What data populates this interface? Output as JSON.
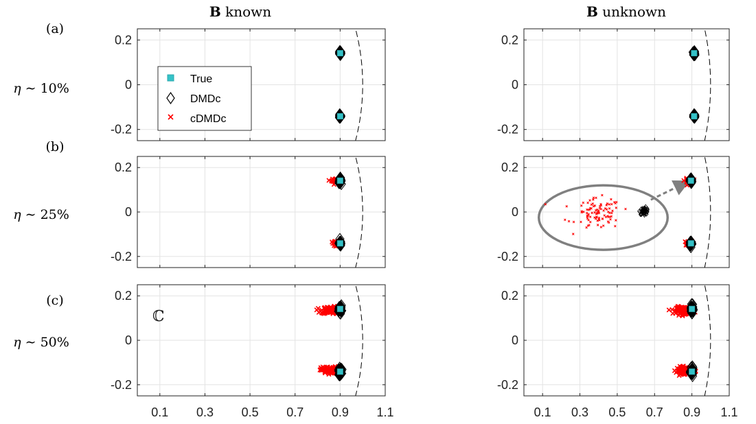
{
  "column_titles": [
    {
      "bold": "B",
      "rest": " known"
    },
    {
      "bold": "B",
      "rest": " unknown"
    }
  ],
  "panel_labels": [
    "(a)",
    "(b)",
    "(c)"
  ],
  "row_labels": [
    {
      "eta": "η",
      "rest": " ∼ 10%"
    },
    {
      "eta": "η",
      "rest": " ∼ 25%"
    },
    {
      "eta": "η",
      "rest": " ∼ 50%"
    }
  ],
  "colors": {
    "true": "#35c2c8",
    "dmdc": "#000000",
    "cdmdc": "#ff0000",
    "grid": "#e3e3e3",
    "arrow": "#808080",
    "ellipse": "#808080"
  },
  "legend": {
    "entries": [
      {
        "label": "True",
        "marker": "square"
      },
      {
        "label": "DMDc",
        "marker": "diamond"
      },
      {
        "label": "cDMDc",
        "marker": "x"
      }
    ],
    "placement": "inside panel (a) left, upper-middle"
  },
  "complex_plane_symbol": "ℂ",
  "chart_data": [
    {
      "type": "scatter",
      "panel": "a",
      "column": "B known",
      "xlim": [
        0,
        1.1
      ],
      "ylim": [
        -0.25,
        0.25
      ],
      "xticks": [
        0.1,
        0.3,
        0.5,
        0.7,
        0.9,
        1.1
      ],
      "yticks": [
        {
          "v": 0.2,
          "label": "0.2"
        },
        {
          "v": 0,
          "label": "0"
        },
        {
          "v": -0.2,
          "label": "-0.2"
        }
      ],
      "xtick_labels_shown": false,
      "grid": true,
      "unit_circle": true,
      "true_eigs": [
        [
          0.9,
          0.141
        ],
        [
          0.9,
          -0.141
        ]
      ],
      "dmdc": {
        "center_spread": 0.004,
        "count": 40
      },
      "cdmdc": {
        "clusters": [
          {
            "x": 0.9,
            "y": 0.141,
            "sx": 0.003,
            "sy": 0.003,
            "n": 20
          },
          {
            "x": 0.9,
            "y": -0.141,
            "sx": 0.003,
            "sy": 0.003,
            "n": 20
          }
        ]
      },
      "legend": true
    },
    {
      "type": "scatter",
      "panel": "a",
      "column": "B unknown",
      "xlim": [
        0,
        1.1
      ],
      "ylim": [
        -0.25,
        0.25
      ],
      "xticks": [
        0.1,
        0.3,
        0.5,
        0.7,
        0.9,
        1.1
      ],
      "yticks": [
        {
          "v": 0.2,
          "label": "0.2"
        },
        {
          "v": 0,
          "label": "0"
        },
        {
          "v": -0.2,
          "label": "-0.2"
        }
      ],
      "xtick_labels_shown": false,
      "grid": true,
      "unit_circle": true,
      "true_eigs": [
        [
          0.912,
          0.141
        ],
        [
          0.912,
          -0.141
        ]
      ],
      "dmdc": {
        "center_spread": 0.004,
        "count": 40
      },
      "cdmdc": {
        "clusters": [
          {
            "x": 0.912,
            "y": 0.141,
            "sx": 0.004,
            "sy": 0.004,
            "n": 20
          },
          {
            "x": 0.912,
            "y": -0.141,
            "sx": 0.004,
            "sy": 0.004,
            "n": 20
          }
        ]
      }
    },
    {
      "type": "scatter",
      "panel": "b",
      "column": "B known",
      "xlim": [
        0,
        1.1
      ],
      "ylim": [
        -0.25,
        0.25
      ],
      "xticks": [
        0.1,
        0.3,
        0.5,
        0.7,
        0.9,
        1.1
      ],
      "yticks": [
        {
          "v": 0.2,
          "label": "0.2"
        },
        {
          "v": 0,
          "label": "0"
        },
        {
          "v": -0.2,
          "label": "-0.2"
        }
      ],
      "xtick_labels_shown": false,
      "grid": true,
      "unit_circle": true,
      "true_eigs": [
        [
          0.9,
          0.141
        ],
        [
          0.9,
          -0.141
        ]
      ],
      "dmdc": {
        "center_spread": 0.006,
        "count": 40
      },
      "cdmdc": {
        "clusters": [
          {
            "x": 0.885,
            "y": 0.141,
            "sx": 0.012,
            "sy": 0.005,
            "n": 30
          },
          {
            "x": 0.885,
            "y": -0.141,
            "sx": 0.012,
            "sy": 0.005,
            "n": 30
          }
        ]
      }
    },
    {
      "type": "scatter",
      "panel": "b",
      "column": "B unknown",
      "xlim": [
        0,
        1.1
      ],
      "ylim": [
        -0.25,
        0.25
      ],
      "xticks": [
        0.1,
        0.3,
        0.5,
        0.7,
        0.9,
        1.1
      ],
      "yticks": [
        {
          "v": 0.2,
          "label": "0.2"
        },
        {
          "v": 0,
          "label": "0"
        },
        {
          "v": -0.2,
          "label": "-0.2"
        }
      ],
      "xtick_labels_shown": false,
      "grid": true,
      "unit_circle": true,
      "true_eigs": [
        [
          0.895,
          0.141
        ],
        [
          0.895,
          -0.141
        ]
      ],
      "dmdc": {
        "center_spread": 0.006,
        "count": 40
      },
      "cdmdc": {
        "clusters": [
          {
            "x": 0.88,
            "y": 0.141,
            "sx": 0.01,
            "sy": 0.005,
            "n": 30
          },
          {
            "x": 0.88,
            "y": -0.141,
            "sx": 0.01,
            "sy": 0.005,
            "n": 30
          }
        ]
      },
      "inset": {
        "ellipse": {
          "cx": 0.425,
          "cy": -0.025,
          "rx": 0.345,
          "ry": 0.145
        },
        "cdmdc_cloud": {
          "x": 0.4,
          "y": -0.01,
          "sx": 0.06,
          "sy": 0.035,
          "n": 95,
          "outliers": [
            [
              0.115,
              0.035
            ],
            [
              0.22,
              -0.035
            ]
          ]
        },
        "dmdc_cloud": {
          "x": 0.645,
          "y": 0.005,
          "sx": 0.012,
          "sy": 0.008,
          "n": 45
        },
        "arrow": {
          "from": [
            0.68,
            0.055
          ],
          "to": [
            0.87,
            0.133
          ]
        }
      }
    },
    {
      "type": "scatter",
      "panel": "c",
      "column": "B known",
      "xlim": [
        0,
        1.1
      ],
      "ylim": [
        -0.25,
        0.25
      ],
      "xticks": [
        0.1,
        0.3,
        0.5,
        0.7,
        0.9,
        1.1
      ],
      "xtick_labels": [
        "0.1",
        "0.3",
        "0.5",
        "0.7",
        "0.9",
        "1.1"
      ],
      "yticks": [
        {
          "v": 0.2,
          "label": "0.2"
        },
        {
          "v": 0,
          "label": "0"
        },
        {
          "v": -0.2,
          "label": "-0.2"
        }
      ],
      "xtick_labels_shown": true,
      "grid": true,
      "unit_circle": true,
      "true_eigs": [
        [
          0.9,
          0.141
        ],
        [
          0.9,
          -0.141
        ]
      ],
      "dmdc": {
        "center_spread": 0.008,
        "count": 40
      },
      "cdmdc": {
        "clusters": [
          {
            "x": 0.86,
            "y": 0.135,
            "sx": 0.022,
            "sy": 0.008,
            "n": 120
          },
          {
            "x": 0.86,
            "y": -0.135,
            "sx": 0.022,
            "sy": 0.008,
            "n": 120
          }
        ]
      },
      "annotation": "ℂ"
    },
    {
      "type": "scatter",
      "panel": "c",
      "column": "B unknown",
      "xlim": [
        0,
        1.1
      ],
      "ylim": [
        -0.25,
        0.25
      ],
      "xticks": [
        0.1,
        0.3,
        0.5,
        0.7,
        0.9,
        1.1
      ],
      "xtick_labels": [
        "0.1",
        "0.3",
        "0.5",
        "0.7",
        "0.9",
        "1.1"
      ],
      "yticks": [
        {
          "v": 0.2,
          "label": "0.2"
        },
        {
          "v": 0,
          "label": "0"
        },
        {
          "v": -0.2,
          "label": "-0.2"
        }
      ],
      "xtick_labels_shown": true,
      "grid": true,
      "unit_circle": true,
      "true_eigs": [
        [
          0.9,
          0.141
        ],
        [
          0.9,
          -0.141
        ]
      ],
      "dmdc": {
        "center_spread": 0.008,
        "count": 40
      },
      "cdmdc": {
        "clusters": [
          {
            "x": 0.86,
            "y": 0.135,
            "sx": 0.022,
            "sy": 0.008,
            "n": 120
          },
          {
            "x": 0.86,
            "y": -0.135,
            "sx": 0.022,
            "sy": 0.008,
            "n": 120
          }
        ]
      }
    }
  ]
}
